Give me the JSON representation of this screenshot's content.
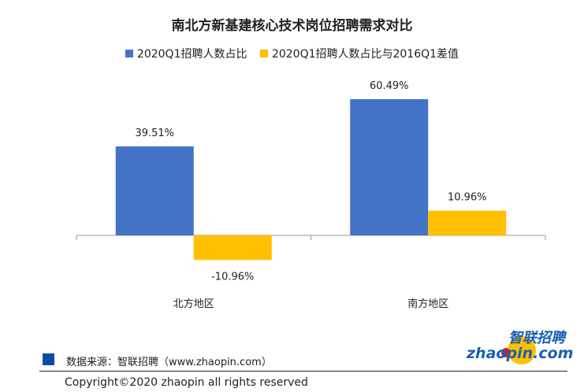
{
  "chart_data": {
    "type": "bar",
    "title": "南北方新基建核心技术岗位招聘需求对比",
    "categories": [
      "北方地区",
      "南方地区"
    ],
    "series": [
      {
        "name": "2020Q1招聘人数占比",
        "color": "#4472c4",
        "values": [
          39.51,
          60.49
        ],
        "labels": [
          "39.51%",
          "60.49%"
        ]
      },
      {
        "name": "2020Q1招聘人数占比与2016Q1差值",
        "color": "#ffc000",
        "values": [
          -10.96,
          10.96
        ],
        "labels": [
          "-10.96%",
          "10.96%"
        ]
      }
    ],
    "ylim": [
      -12,
      65
    ],
    "legend": "top"
  },
  "footer": {
    "source": "数据来源：智联招聘（www.zhaopin.com）",
    "copyright": "Copyright©2020  zhaopin all rights reserved"
  },
  "logo": {
    "cn": "智联招聘",
    "en": "zhaopin.com"
  }
}
